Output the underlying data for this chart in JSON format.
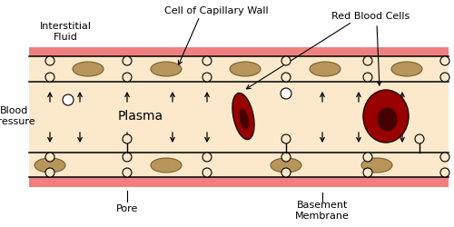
{
  "bg_color": "#ffffff",
  "plasma_color": "#fce9cc",
  "wall_color": "#fce9cc",
  "pink_color": "#f08080",
  "nucleus_color": "#b8955a",
  "nucleus_edge": "#7a5f30",
  "rbc_color": "#990000",
  "rbc_dark": "#440000",
  "junction_color": "#fce9cc",
  "figsize": [
    5.0,
    2.5
  ],
  "dpi": 100,
  "labels": {
    "interstitial_fluid": "Interstitial\nFluid",
    "cell_of_capillary": "Cell of Capillary Wall",
    "red_blood_cells": "Red Blood Cells",
    "blood_pressure": "Blood\nPressure",
    "plasma": "Plasma",
    "pore": "Pore",
    "basement_membrane": "Basement\nMembrane"
  }
}
